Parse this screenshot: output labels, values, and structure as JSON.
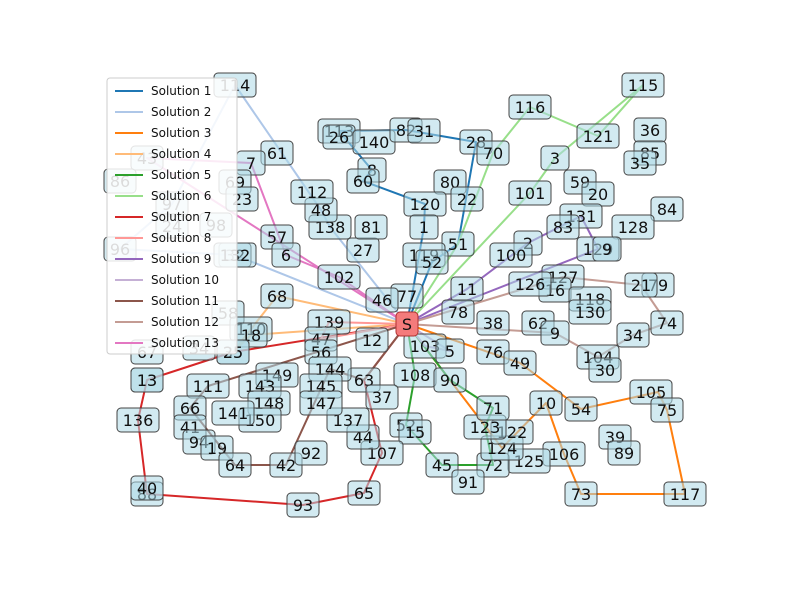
{
  "legend": [
    {
      "label": "Solution 1",
      "color": "#1f77b4"
    },
    {
      "label": "Solution 2",
      "color": "#aec7e8"
    },
    {
      "label": "Solution 3",
      "color": "#ff7f0e"
    },
    {
      "label": "Solution 4",
      "color": "#ffbb78"
    },
    {
      "label": "Solution 5",
      "color": "#2ca02c"
    },
    {
      "label": "Solution 6",
      "color": "#98df8a"
    },
    {
      "label": "Solution 7",
      "color": "#d62728"
    },
    {
      "label": "Solution 8",
      "color": "#ff9896"
    },
    {
      "label": "Solution 9",
      "color": "#9467bd"
    },
    {
      "label": "Solution 10",
      "color": "#c5b0d5"
    },
    {
      "label": "Solution 11",
      "color": "#8c564b"
    },
    {
      "label": "Solution 12",
      "color": "#c49c94"
    },
    {
      "label": "Solution 13",
      "color": "#e377c2"
    }
  ],
  "depot_label": "S",
  "node_labels": [
    "114",
    "113",
    "26",
    "140",
    "82",
    "31",
    "28",
    "70",
    "116",
    "121",
    "115",
    "36",
    "85",
    "35",
    "84",
    "8",
    "60",
    "80",
    "22",
    "120",
    "1",
    "51",
    "119",
    "52",
    "3",
    "59",
    "20",
    "101",
    "128",
    "131",
    "83",
    "2",
    "100",
    "129",
    "9",
    "127",
    "16",
    "126",
    "118",
    "130",
    "11",
    "78",
    "77",
    "46",
    "27",
    "138",
    "81",
    "48",
    "112",
    "61",
    "7",
    "69",
    "23",
    "43",
    "86",
    "97",
    "24",
    "98",
    "96",
    "57",
    "6",
    "102",
    "32",
    "132",
    "68",
    "58",
    "139",
    "110",
    "18",
    "35",
    "47",
    "56",
    "12",
    "62",
    "9",
    "38",
    "76",
    "49",
    "103",
    "5",
    "108",
    "90",
    "104",
    "30",
    "34",
    "74",
    "79",
    "21",
    "105",
    "75",
    "39",
    "89",
    "117",
    "73",
    "106",
    "125",
    "72",
    "124",
    "122",
    "123",
    "71",
    "52",
    "15",
    "45",
    "91",
    "10",
    "54",
    "107",
    "44",
    "137",
    "63",
    "65",
    "37",
    "144",
    "145",
    "147",
    "149",
    "143",
    "148",
    "150",
    "141",
    "13",
    "111",
    "66",
    "41",
    "94",
    "19",
    "64",
    "42",
    "92",
    "93",
    "88",
    "40",
    "136",
    "13",
    "67",
    "34",
    "25"
  ],
  "edge_labels": [
    "Solution 1",
    "Solution 2",
    "Solution 3",
    "Solution 4",
    "Solution 5",
    "Solution 6",
    "Solution 7",
    "Solution 8",
    "Solution 9",
    "Solution 10",
    "Solution 11",
    "Solution 12",
    "Solution 13"
  ]
}
